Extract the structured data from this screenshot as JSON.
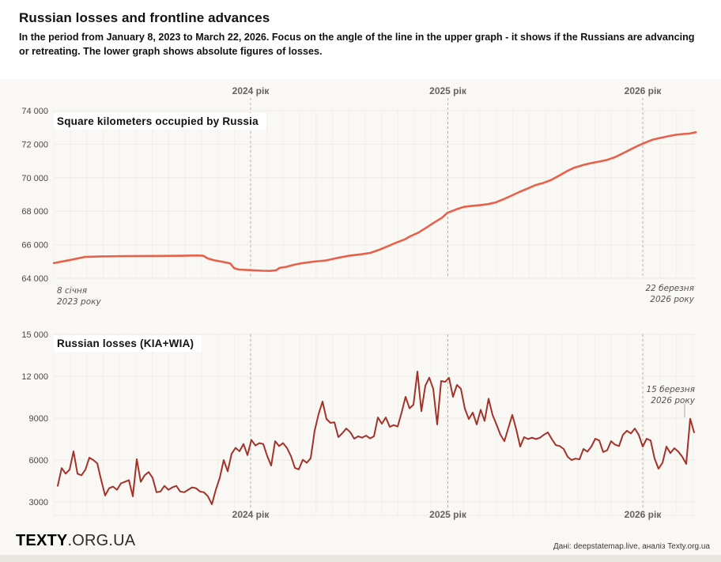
{
  "header": {
    "title": "Russian losses and frontline advances",
    "subtitle": "In the period from January 8, 2023 to March 22, 2026. Focus on the angle of the line in the upper graph - it shows if the Russians are advancing or retreating. The lower graph shows absolute figures of losses."
  },
  "footer": {
    "brand_bold": "TEXTY",
    "brand_rest": ".ORG.UA",
    "credit": "Дані: deepstatemap.live, аналіз Texty.org.ua"
  },
  "colors": {
    "occupied_line": "#E8604A",
    "losses_line": "#A2322A",
    "grid_major": "#ECEAE5",
    "grid_minor": "#F1EFEA",
    "year_line": "#B5B2AC",
    "tick_text": "#4A4846",
    "year_text": "#66635E",
    "annotation_line": "#8F8D88",
    "background": "#FAF8F5"
  },
  "chart_data": [
    {
      "type": "line",
      "title": "Square kilometers occupied by Russia",
      "ylabel": "",
      "ylim": [
        64000,
        74000
      ],
      "yticks": [
        {
          "value": 74000,
          "label": "74 000"
        },
        {
          "value": 72000,
          "label": "72 000"
        },
        {
          "value": 70000,
          "label": "70 000"
        },
        {
          "value": 68000,
          "label": "68 000"
        },
        {
          "value": 66000,
          "label": "66 000"
        },
        {
          "value": 64000,
          "label": "64 000"
        }
      ],
      "year_labels": [
        "2024 рік",
        "2025 рік",
        "2026 рік"
      ],
      "start_annotation": {
        "line1": "8 січня",
        "line2": "2023 року"
      },
      "end_annotation": {
        "line1": "22 березня",
        "line2": "2026 року"
      },
      "x_range": "2023-01-08 to 2026-03-22",
      "points": [
        [
          0.0,
          64900
        ],
        [
          0.027,
          65100
        ],
        [
          0.048,
          65270
        ],
        [
          0.073,
          65300
        ],
        [
          0.113,
          65320
        ],
        [
          0.163,
          65330
        ],
        [
          0.199,
          65340
        ],
        [
          0.224,
          65360
        ],
        [
          0.233,
          65340
        ],
        [
          0.24,
          65180
        ],
        [
          0.249,
          65080
        ],
        [
          0.267,
          64950
        ],
        [
          0.275,
          64880
        ],
        [
          0.281,
          64600
        ],
        [
          0.288,
          64520
        ],
        [
          0.307,
          64480
        ],
        [
          0.325,
          64450
        ],
        [
          0.337,
          64440
        ],
        [
          0.346,
          64470
        ],
        [
          0.352,
          64620
        ],
        [
          0.362,
          64680
        ],
        [
          0.374,
          64800
        ],
        [
          0.387,
          64900
        ],
        [
          0.405,
          64990
        ],
        [
          0.424,
          65060
        ],
        [
          0.442,
          65210
        ],
        [
          0.461,
          65350
        ],
        [
          0.479,
          65430
        ],
        [
          0.493,
          65510
        ],
        [
          0.507,
          65700
        ],
        [
          0.521,
          65920
        ],
        [
          0.534,
          66130
        ],
        [
          0.547,
          66320
        ],
        [
          0.555,
          66500
        ],
        [
          0.568,
          66720
        ],
        [
          0.58,
          67010
        ],
        [
          0.592,
          67310
        ],
        [
          0.605,
          67620
        ],
        [
          0.613,
          67900
        ],
        [
          0.627,
          68110
        ],
        [
          0.639,
          68260
        ],
        [
          0.651,
          68310
        ],
        [
          0.664,
          68360
        ],
        [
          0.676,
          68420
        ],
        [
          0.688,
          68520
        ],
        [
          0.701,
          68720
        ],
        [
          0.713,
          68930
        ],
        [
          0.725,
          69140
        ],
        [
          0.738,
          69350
        ],
        [
          0.75,
          69550
        ],
        [
          0.762,
          69680
        ],
        [
          0.775,
          69870
        ],
        [
          0.787,
          70120
        ],
        [
          0.799,
          70380
        ],
        [
          0.811,
          70600
        ],
        [
          0.825,
          70760
        ],
        [
          0.837,
          70870
        ],
        [
          0.85,
          70960
        ],
        [
          0.862,
          71060
        ],
        [
          0.874,
          71220
        ],
        [
          0.887,
          71460
        ],
        [
          0.899,
          71700
        ],
        [
          0.911,
          71920
        ],
        [
          0.92,
          72070
        ],
        [
          0.932,
          72260
        ],
        [
          0.944,
          72370
        ],
        [
          0.957,
          72470
        ],
        [
          0.969,
          72560
        ],
        [
          0.981,
          72610
        ],
        [
          0.99,
          72630
        ],
        [
          1.0,
          72710
        ]
      ]
    },
    {
      "type": "line",
      "title": "Russian losses (KIA+WIA)",
      "ylabel": "",
      "ylim": [
        3000,
        15000
      ],
      "yticks": [
        {
          "value": 15000,
          "label": "15 000"
        },
        {
          "value": 12000,
          "label": "12 000"
        },
        {
          "value": 9000,
          "label": "9000"
        },
        {
          "value": 6000,
          "label": "6000"
        },
        {
          "value": 3000,
          "label": "3000"
        }
      ],
      "year_labels": [
        "2024 рік",
        "2025 рік",
        "2026 рік"
      ],
      "peak_annotation": {
        "line1": "15 березня",
        "line2": "2026 року"
      },
      "x_range": "weekly, 2023-01-08 to 2026-03-22",
      "values": [
        4150,
        5420,
        5020,
        5310,
        6630,
        5020,
        4910,
        5310,
        6170,
        6000,
        5770,
        4560,
        3460,
        3980,
        4100,
        3870,
        4330,
        4440,
        4560,
        3400,
        6060,
        4440,
        4910,
        5140,
        4730,
        3690,
        3750,
        4150,
        3870,
        4040,
        4150,
        3750,
        3690,
        3870,
        4040,
        3980,
        3750,
        3690,
        3400,
        2830,
        3870,
        4730,
        6000,
        5190,
        6460,
        6870,
        6630,
        7150,
        6350,
        7440,
        7040,
        7210,
        7150,
        6290,
        5600,
        7350,
        7000,
        7210,
        6860,
        6290,
        5440,
        5330,
        6020,
        5800,
        6130,
        8100,
        9300,
        10190,
        8940,
        8660,
        8700,
        7640,
        7920,
        8260,
        8000,
        7530,
        7700,
        7600,
        7750,
        7550,
        7700,
        9050,
        8600,
        9050,
        8380,
        8500,
        8400,
        9400,
        10530,
        9700,
        9970,
        12340,
        9500,
        11320,
        11900,
        11100,
        8550,
        11660,
        11600,
        11880,
        10530,
        11380,
        11100,
        9680,
        8940,
        9400,
        8550,
        9600,
        8800,
        10400,
        9230,
        8550,
        7810,
        7350,
        8300,
        9230,
        8200,
        6960,
        7640,
        7500,
        7600,
        7500,
        7600,
        7810,
        7980,
        7500,
        7070,
        7000,
        6790,
        6230,
        6000,
        6100,
        6050,
        6790,
        6600,
        6960,
        7530,
        7400,
        6570,
        6700,
        7350,
        7100,
        7000,
        7810,
        8100,
        7900,
        8260,
        7800,
        6960,
        7530,
        7400,
        6110,
        5380,
        5800,
        6960,
        6500,
        6850,
        6600,
        6230,
        5720,
        8960,
        7980
      ]
    }
  ]
}
